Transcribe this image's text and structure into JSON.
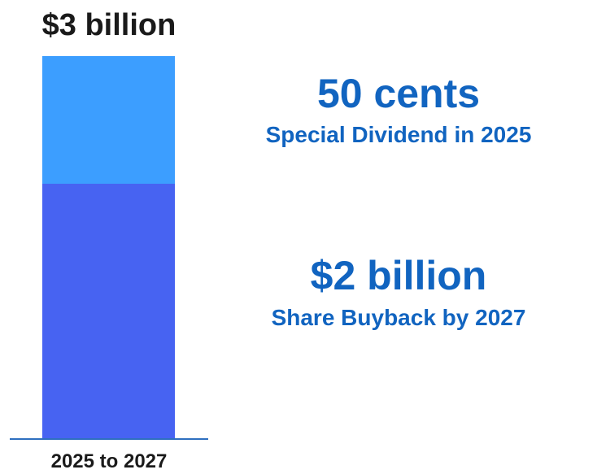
{
  "chart_data": {
    "type": "bar",
    "stacked": true,
    "categories": [
      "2025 to 2027"
    ],
    "total_label": "$3 billion",
    "total_value": 3,
    "unit": "billion USD",
    "ylim": [
      0,
      3
    ],
    "grid": false,
    "series": [
      {
        "values": [
          2
        ],
        "color": "#4763F2"
      },
      {
        "values": [
          1
        ],
        "color": "#3C9EFF"
      }
    ],
    "annotations": [
      {
        "value": "50 cents",
        "description": "Special Dividend in 2025",
        "color": "#1164C0"
      },
      {
        "value": "$2 billion",
        "description": "Share Buyback by 2027",
        "color": "#1164C0"
      }
    ],
    "axis_color": "#2F6FBF"
  }
}
